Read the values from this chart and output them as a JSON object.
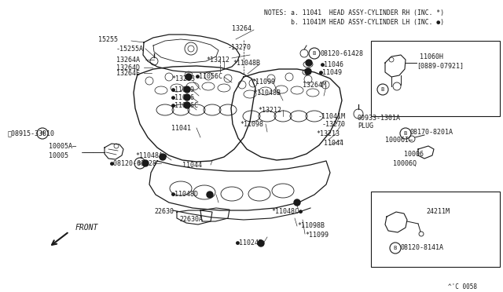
{
  "bg_color": "#ffffff",
  "line_color": "#1a1a1a",
  "text_color": "#1a1a1a",
  "fig_width": 6.4,
  "fig_height": 3.72,
  "notes_line1": "NOTES: a. 11041  HEAD ASSY-CYLINDER RH (INC. *)",
  "notes_line2": "       b. 11041M HEAD ASSY-CYLINDER LH (INC. ●)",
  "fig_id": "^'C 0058"
}
